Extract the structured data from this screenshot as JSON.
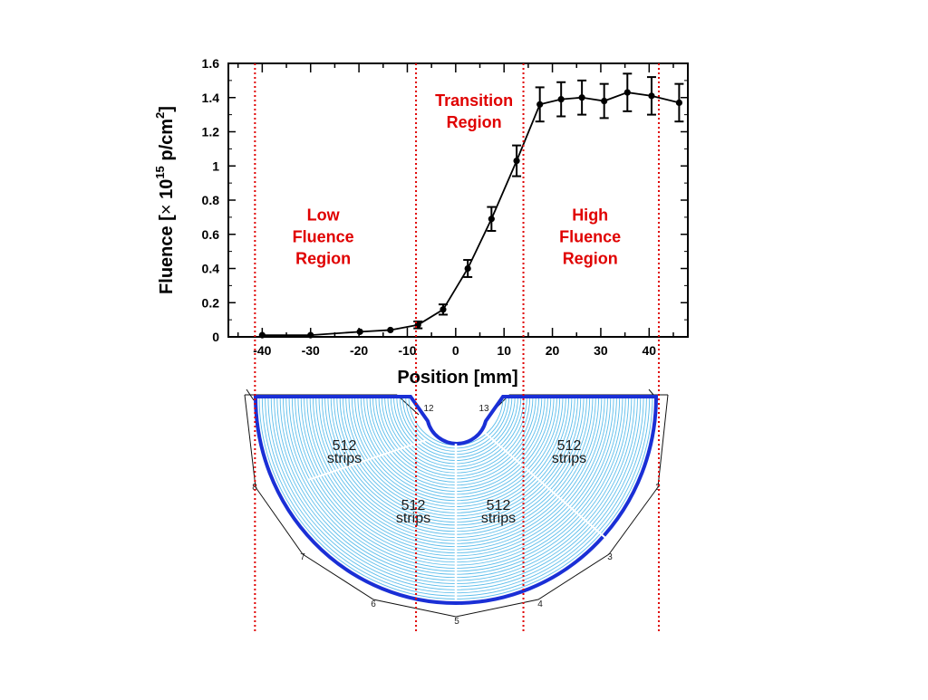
{
  "chart_data": {
    "type": "line",
    "xlabel": "Position",
    "xunit": "[mm]",
    "ylabel_prefix": "Fluence [",
    "ylabel_times": "×",
    "ylabel_base": "10",
    "ylabel_exp": "15",
    "ylabel_unit": " p/cm",
    "ylabel_unit_exp": "2",
    "ylabel_suffix": "]",
    "xlim": [
      -47,
      48
    ],
    "ylim": [
      0,
      1.6
    ],
    "xticks": [
      -40,
      -30,
      -20,
      -10,
      0,
      10,
      20,
      30,
      40
    ],
    "xtick_labels": [
      "-40",
      "-30",
      "-20",
      "-10",
      "0",
      "10",
      "20",
      "30",
      "40"
    ],
    "yticks": [
      0,
      0.2,
      0.4,
      0.6,
      0.8,
      1,
      1.2,
      1.4,
      1.6
    ],
    "ytick_labels": [
      "0",
      "0.2",
      "0.4",
      "0.6",
      "0.8",
      "1",
      "1.2",
      "1.4",
      "1.6"
    ],
    "grid": false,
    "series": [
      {
        "x": [
          -40,
          -30,
          -19.8,
          -13.5,
          -7.8,
          -2.6,
          2.5,
          7.4,
          12.6,
          17.4,
          21.8,
          26.1,
          30.7,
          35.5,
          40.5,
          46.2
        ],
        "y": [
          0.01,
          0.01,
          0.03,
          0.04,
          0.07,
          0.16,
          0.4,
          0.69,
          1.03,
          1.36,
          1.39,
          1.4,
          1.38,
          1.43,
          1.41,
          1.37
        ],
        "yerr": [
          0.0,
          0.0,
          0.0,
          0.0,
          0.02,
          0.03,
          0.05,
          0.07,
          0.09,
          0.1,
          0.1,
          0.1,
          0.1,
          0.11,
          0.11,
          0.11
        ],
        "color": "#000000"
      }
    ],
    "region_boundaries_x": [
      -41.5,
      -8.2,
      14,
      42
    ],
    "region_boundary_color": "#e00000",
    "annotations": [
      {
        "lines": [
          "Transition",
          "Region"
        ],
        "x": 3.8,
        "y": 1.35
      },
      {
        "lines": [
          "Low",
          "Fluence",
          "Region"
        ],
        "x": -27.4,
        "y": 0.68
      },
      {
        "lines": [
          "High",
          "Fluence",
          "Region"
        ],
        "x": 27.8,
        "y": 0.68
      }
    ]
  },
  "sensor_diagram": {
    "strip_labels": [
      {
        "count": "512",
        "unit": "strips"
      },
      {
        "count": "512",
        "unit": "strips"
      },
      {
        "count": "512",
        "unit": "strips"
      },
      {
        "count": "512",
        "unit": "strips"
      }
    ],
    "corner_labels": [
      "12",
      "13",
      "2",
      "3",
      "4",
      "5",
      "6",
      "7",
      "8"
    ],
    "outline_color": "#1a2fd6",
    "strip_color": "#3fb2e8"
  }
}
